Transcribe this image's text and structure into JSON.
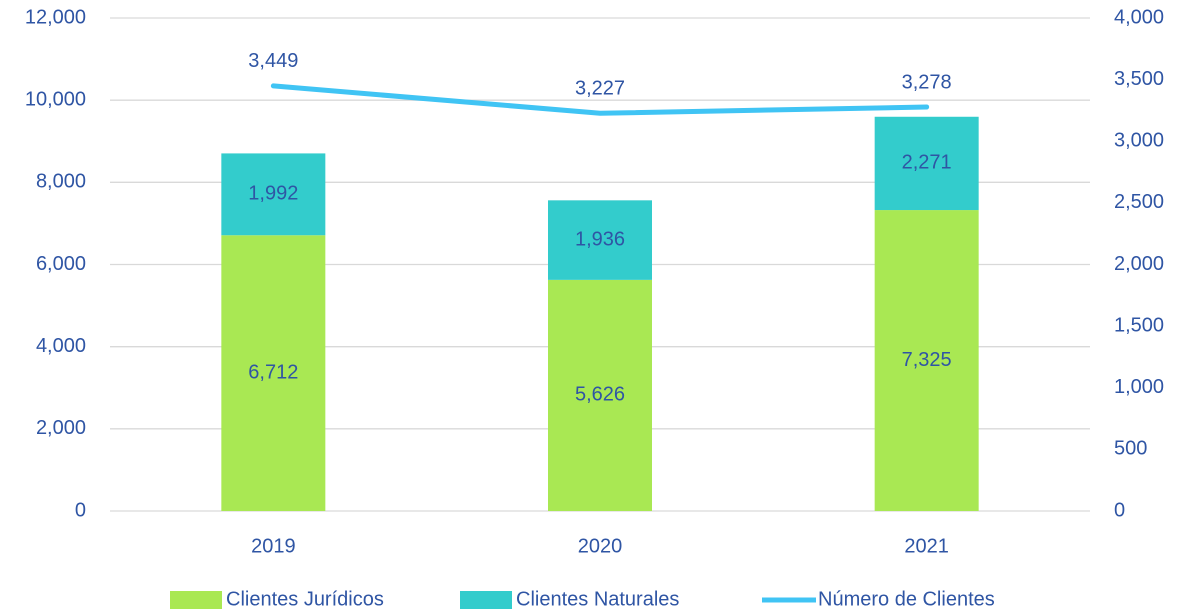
{
  "chart_data": {
    "type": "bar-line",
    "categories": [
      "2019",
      "2020",
      "2021"
    ],
    "series": [
      {
        "name": "Clientes Jurídicos",
        "color": "#a9e853",
        "type": "bar",
        "values": [
          6712,
          5626,
          7325
        ],
        "value_labels": [
          "6,712",
          "5,626",
          "7,325"
        ]
      },
      {
        "name": "Clientes Naturales",
        "color": "#33cccc",
        "type": "bar",
        "values": [
          1992,
          1936,
          2271
        ],
        "value_labels": [
          "1,992",
          "1,936",
          "2,271"
        ]
      },
      {
        "name": "Número de Clientes",
        "color": "#40c4f4",
        "type": "line",
        "axis": "y2",
        "values": [
          3449,
          3227,
          3278
        ],
        "value_labels": [
          "3,449",
          "3,227",
          "3,278"
        ]
      }
    ],
    "stacked": true,
    "ylim": [
      0,
      12000
    ],
    "yticks": [
      0,
      {
        "value": 2000,
        "label": "2,000"
      },
      {
        "value": 4000,
        "label": "4,000"
      },
      {
        "value": 6000,
        "label": "6,000"
      },
      {
        "value": 8000,
        "label": "8,000"
      },
      {
        "value": 10000,
        "label": "10,000"
      },
      {
        "value": 12000,
        "label": "12,000"
      }
    ],
    "y2lim": [
      0,
      4000
    ],
    "y2ticks": [
      0,
      500,
      {
        "value": 1000,
        "label": "1,000"
      },
      {
        "value": 1500,
        "label": "1,500"
      },
      {
        "value": 2000,
        "label": "2,000"
      },
      {
        "value": 2500,
        "label": "2,500"
      },
      {
        "value": 3000,
        "label": "3,000"
      },
      {
        "value": 3500,
        "label": "3,500"
      },
      {
        "value": 4000,
        "label": "4,000"
      }
    ],
    "grid": true,
    "legend": "bottom"
  }
}
